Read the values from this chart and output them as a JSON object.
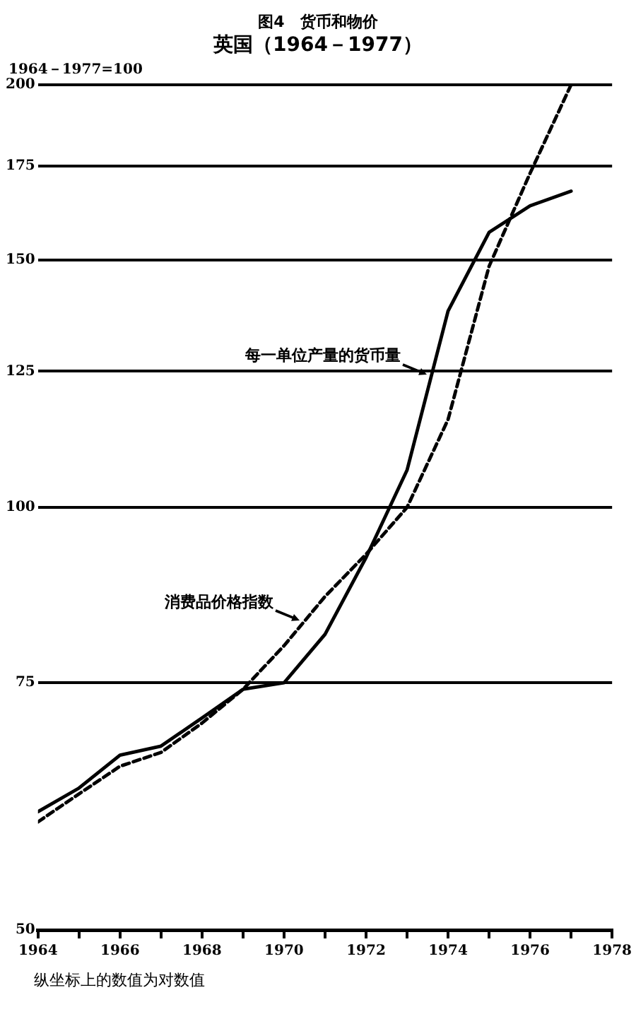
{
  "chart_data": {
    "type": "line",
    "title": "图4　货币和物价",
    "subtitle": "英国（1964－1977）",
    "ylabel": "1964－1977=100",
    "annotations": [
      "纵坐标上的数值为对数值"
    ],
    "x": [
      1964,
      1965,
      1966,
      1967,
      1968,
      1969,
      1970,
      1971,
      1972,
      1973,
      1974,
      1975,
      1976,
      1977
    ],
    "series": [
      {
        "name": "每一单位产量的货币量",
        "color": "#000000",
        "line_style": "solid",
        "values": [
          60.7,
          63.1,
          66.6,
          67.6,
          70.8,
          74.2,
          75.0,
          81.2,
          92.1,
          106.3,
          138,
          157,
          164,
          168
        ]
      },
      {
        "name": "消费品价格指数",
        "color": "#000000",
        "line_style": "dashed",
        "values": [
          59.7,
          62.5,
          65.4,
          66.9,
          70.2,
          74.2,
          79.7,
          86.4,
          92.6,
          100,
          115.5,
          148.5,
          173,
          200
        ]
      }
    ],
    "log": "y",
    "ylim": [
      50,
      200
    ],
    "yticks": [
      50,
      75,
      100,
      125,
      150,
      175,
      200
    ],
    "xlim": [
      1964,
      1978
    ],
    "xticks": [
      1964,
      {
        "value": 1965,
        "label": null
      },
      1966,
      {
        "value": 1967,
        "label": null
      },
      1968,
      {
        "value": 1969,
        "label": null
      },
      1970,
      {
        "value": 1971,
        "label": null
      },
      1972,
      {
        "value": 1973,
        "label": null
      },
      1974,
      {
        "value": 1975,
        "label": null
      },
      1976,
      {
        "value": 1977,
        "label": null
      },
      1978
    ],
    "grid": "y",
    "marker": "none",
    "legend": false
  }
}
